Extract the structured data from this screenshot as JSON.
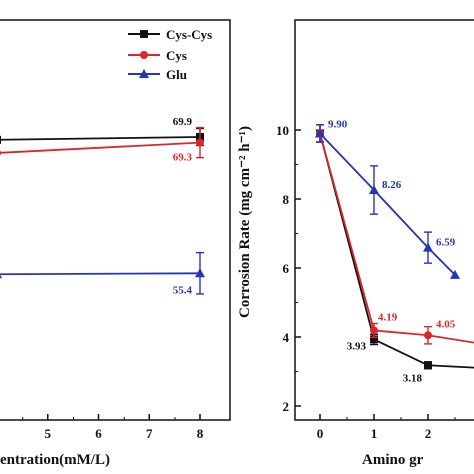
{
  "chart_data": [
    {
      "type": "line",
      "xlabel": "entration(mM/L)",
      "ylabel": "",
      "x_ticks": [
        "5",
        "6",
        "7",
        "8"
      ],
      "legend": [
        "Cys-Cys",
        "Cys",
        "Glu"
      ],
      "series": [
        {
          "name": "Cys-Cys",
          "color": "#111111",
          "marker": "square",
          "x": [
            4,
            8
          ],
          "y": [
            69.6,
            69.9
          ],
          "errors": [
            0,
            0.9
          ],
          "labels": [
            "",
            "69.9"
          ]
        },
        {
          "name": "Cys",
          "color": "#d8282a",
          "marker": "circle",
          "x": [
            4,
            8
          ],
          "y": [
            68.2,
            69.3
          ],
          "errors": [
            0,
            1.6
          ],
          "labels": [
            "",
            "69.3"
          ]
        },
        {
          "name": "Glu",
          "color": "#2535b8",
          "marker": "triangle",
          "x": [
            4,
            8
          ],
          "y": [
            55.3,
            55.4
          ],
          "errors": [
            0,
            2.2
          ],
          "labels": [
            "",
            "55.4"
          ]
        }
      ]
    },
    {
      "type": "line",
      "xlabel": "Amino gr",
      "ylabel": "Corrosion Rate (mg cm⁻² h⁻¹)",
      "y_ticks": [
        "2",
        "4",
        "6",
        "8",
        "10"
      ],
      "x_ticks": [
        "0",
        "1",
        "2"
      ],
      "ylim": [
        2,
        11
      ],
      "series": [
        {
          "name": "Cys-Cys",
          "color": "#111111",
          "marker": "square",
          "x": [
            0,
            1,
            2,
            3
          ],
          "y": [
            9.9,
            3.93,
            3.18,
            3.1
          ],
          "errors": [
            0.25,
            0.15,
            0.1,
            0
          ],
          "labels": [
            "",
            "3.93",
            "3.18",
            ""
          ]
        },
        {
          "name": "Cys",
          "color": "#d8282a",
          "marker": "circle",
          "x": [
            0,
            1,
            2,
            3
          ],
          "y": [
            9.9,
            4.19,
            4.05,
            3.8
          ],
          "errors": [
            0.25,
            0.2,
            0.25,
            0
          ],
          "labels": [
            "",
            "4.19",
            "4.05",
            ""
          ]
        },
        {
          "name": "Glu",
          "color": "#2535b8",
          "marker": "triangle",
          "x": [
            0,
            1,
            2,
            2.5
          ],
          "y": [
            9.9,
            8.26,
            6.59,
            5.8
          ],
          "errors": [
            0.25,
            0.7,
            0.45,
            0
          ],
          "labels": [
            "9.90",
            "8.26",
            "6.59",
            ""
          ]
        }
      ]
    }
  ]
}
